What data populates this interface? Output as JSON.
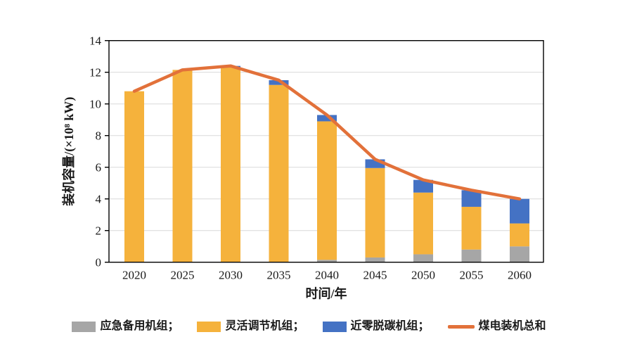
{
  "colors": {
    "emergency": "#A6A6A6",
    "flexible": "#F5B23C",
    "nearzero": "#4472C4",
    "total_line": "#E2713A",
    "grid": "#D9D9D9",
    "axis": "#000000",
    "background": "#FFFFFF"
  },
  "chart_data": {
    "type": "bar",
    "subtype": "stacked-bars-with-total-line",
    "title": "",
    "xlabel": "时间/年",
    "ylabel": "装机容量/(×10⁸ kW)",
    "ylim": [
      0,
      14
    ],
    "ytick_step": 2,
    "yticks": [
      0,
      2,
      4,
      6,
      8,
      10,
      12,
      14
    ],
    "grid": true,
    "legend_position": "bottom",
    "categories": [
      "2020",
      "2025",
      "2030",
      "2035",
      "2040",
      "2045",
      "2050",
      "2055",
      "2060"
    ],
    "series": [
      {
        "name": "应急备用机组",
        "kind": "bar",
        "color_key": "emergency",
        "values": [
          0,
          0,
          0,
          0,
          0.15,
          0.3,
          0.5,
          0.8,
          1.0
        ]
      },
      {
        "name": "灵活调节机组",
        "kind": "bar",
        "color_key": "flexible",
        "values": [
          10.8,
          12.15,
          12.3,
          11.2,
          8.75,
          5.65,
          3.9,
          2.7,
          1.45
        ]
      },
      {
        "name": "近零脱碳机组",
        "kind": "bar",
        "color_key": "nearzero",
        "values": [
          0,
          0,
          0.1,
          0.3,
          0.4,
          0.55,
          0.8,
          1.05,
          1.55
        ]
      },
      {
        "name": "煤电装机总和",
        "kind": "line",
        "color_key": "total_line",
        "values": [
          10.8,
          12.15,
          12.4,
          11.5,
          9.3,
          6.5,
          5.2,
          4.55,
          4.0
        ]
      }
    ]
  },
  "legend": {
    "items": [
      {
        "label": "应急备用机组；",
        "swatch": "rect",
        "color_key": "emergency"
      },
      {
        "label": "灵活调节机组；",
        "swatch": "rect",
        "color_key": "flexible"
      },
      {
        "label": "近零脱碳机组；",
        "swatch": "rect",
        "color_key": "nearzero"
      },
      {
        "label": "煤电装机总和",
        "swatch": "line",
        "color_key": "total_line"
      }
    ]
  }
}
